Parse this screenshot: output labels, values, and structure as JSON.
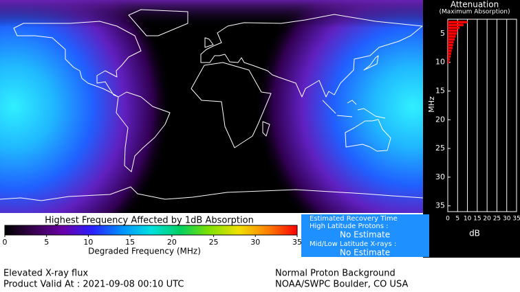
{
  "chart_data": [
    {
      "type": "hbar",
      "title": "Attenuation",
      "subtitle": "(Maximum Absorption)",
      "ylabel": "MHz",
      "xlabel": "dB",
      "y": [
        3,
        3.5,
        4,
        4.5,
        5,
        5.5,
        6,
        6.5,
        7,
        7.5,
        8,
        8.5,
        9,
        9.5,
        10
      ],
      "values": [
        10,
        8,
        6,
        5,
        4.5,
        4,
        3.5,
        3,
        2.7,
        2.4,
        2,
        1.7,
        1.4,
        1.1,
        0.8
      ],
      "color": "#ff0000",
      "xlim": [
        0,
        35
      ],
      "xticks": [
        0,
        5,
        10,
        15,
        20,
        25,
        30,
        35
      ],
      "ylim": [
        2.5,
        36
      ],
      "yticks": [
        5,
        10,
        15,
        20,
        25,
        30,
        35
      ],
      "y_inverted": true,
      "grid": true
    },
    {
      "type": "colorbar",
      "title": "Highest Frequency Affected by 1dB Absorption",
      "xlabel": "Degraded Frequency (MHz)",
      "xlim": [
        0,
        35
      ],
      "xticks": [
        0,
        5,
        10,
        15,
        20,
        25,
        30,
        35
      ],
      "colors": [
        "#000000",
        "#3a0050",
        "#6a00a8",
        "#2a20ff",
        "#0090ff",
        "#00e0e0",
        "#00d060",
        "#80e000",
        "#f0e000",
        "#ff8000",
        "#ff0000"
      ]
    }
  ],
  "recovery_panel": {
    "title": "Estimated Recovery Time",
    "high_latitude_label": "High Latitude Protons :",
    "high_latitude_value": "No Estimate",
    "low_latitude_label": "Mid/Low Latitude X-rays :",
    "low_latitude_value": "No Estimate"
  },
  "footer": {
    "status": "Elevated X-ray flux",
    "valid_at": "Product Valid At : 2021-09-08 00:10 UTC",
    "proton_status": "Normal Proton Background",
    "source": "NOAA/SWPC Boulder, CO USA"
  }
}
